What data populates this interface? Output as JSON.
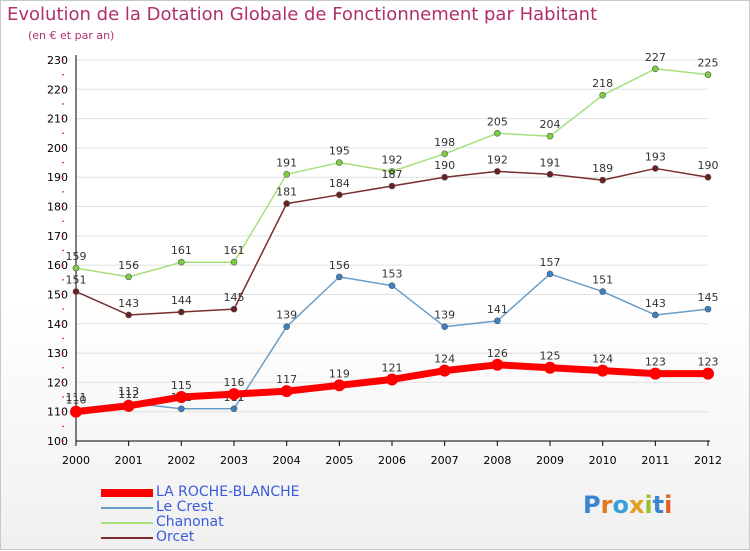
{
  "title": "Evolution de la Dotation Globale de Fonctionnement par Habitant",
  "subtitle": "(en € et par an)",
  "logo_text": "Proxiti",
  "colors": {
    "title": "#b0306a",
    "axis": "#000000",
    "grid": "#e0e0e0",
    "tick_marker": "#e03060",
    "label": "#333333"
  },
  "chart_data": {
    "type": "line",
    "x": [
      "2000",
      "2001",
      "2002",
      "2003",
      "2004",
      "2005",
      "2006",
      "2007",
      "2008",
      "2009",
      "2010",
      "2011",
      "2012"
    ],
    "ylim": [
      100,
      230
    ],
    "yticks": [
      100,
      110,
      120,
      130,
      140,
      150,
      160,
      170,
      180,
      190,
      200,
      210,
      220,
      230
    ],
    "grid": true,
    "legend_position": "bottom-left",
    "series": [
      {
        "name": "LA ROCHE-BLANCHE",
        "color": "#ff0000",
        "marker_color": "#ff0000",
        "width": 7,
        "legend_text_color": "#3b5bdb",
        "values": [
          110,
          112,
          115,
          116,
          117,
          119,
          121,
          124,
          126,
          125,
          124,
          123,
          123
        ]
      },
      {
        "name": "Le Crest",
        "color": "#6a9ec9",
        "marker_color": "#3b82c4",
        "width": 1.5,
        "legend_text_color": "#3b5bdb",
        "values": [
          111,
          113,
          111,
          111,
          139,
          156,
          153,
          139,
          141,
          157,
          151,
          143,
          145
        ]
      },
      {
        "name": "Chanonat",
        "color": "#a6e07a",
        "marker_color": "#7cd040",
        "width": 1.5,
        "legend_text_color": "#3b5bdb",
        "values": [
          159,
          156,
          161,
          161,
          191,
          195,
          192,
          198,
          205,
          204,
          218,
          227,
          225
        ]
      },
      {
        "name": "Orcet",
        "color": "#7a2e2e",
        "marker_color": "#6b1f1f",
        "width": 1.5,
        "legend_text_color": "#3b5bdb",
        "values": [
          151,
          143,
          144,
          145,
          181,
          184,
          187,
          190,
          192,
          191,
          189,
          193,
          190
        ]
      }
    ]
  }
}
